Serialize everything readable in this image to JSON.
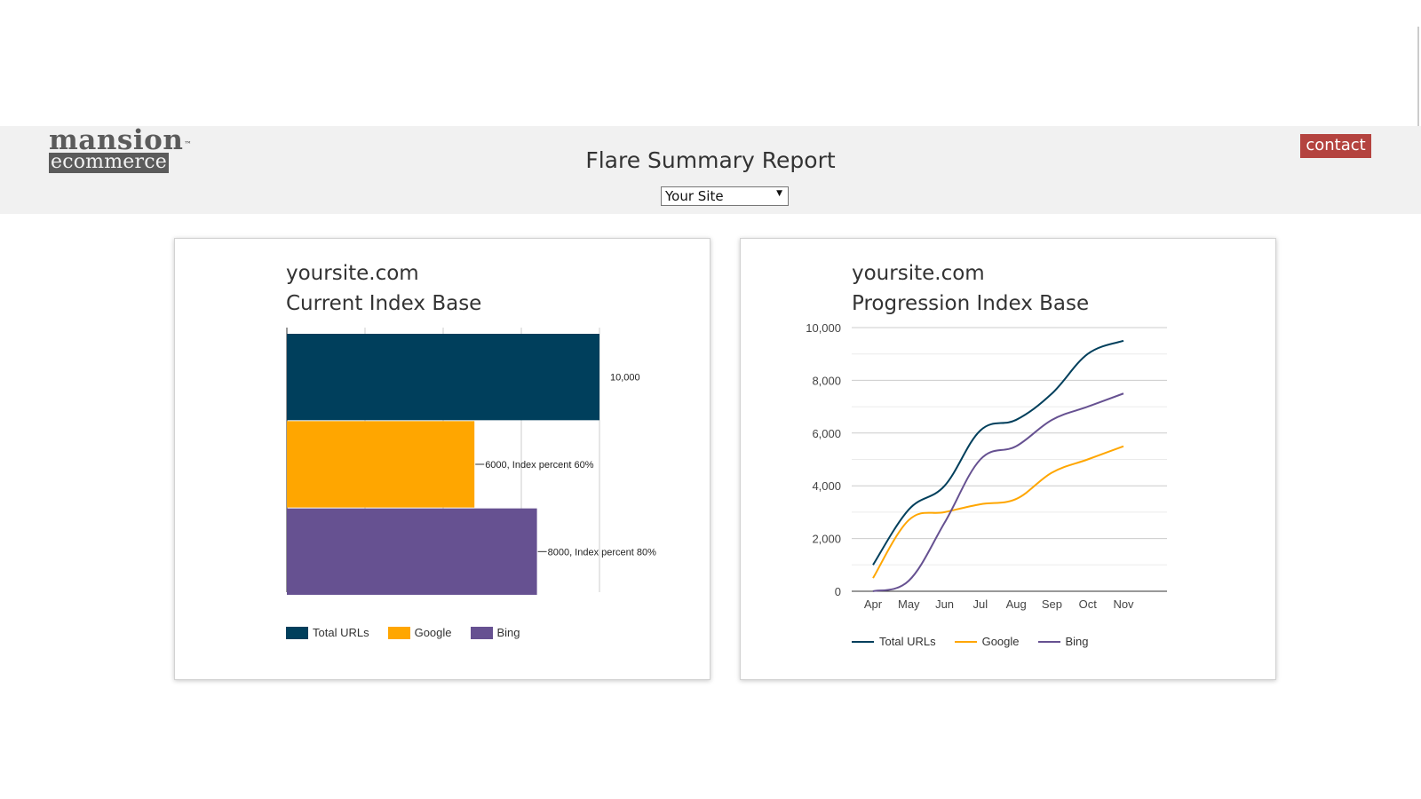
{
  "header": {
    "logo": {
      "top": "mansion",
      "mark": "™",
      "bottom": "ecommerce"
    },
    "title": "Flare Summary Report",
    "site_select": {
      "selected": "Your Site",
      "arrow": "▼"
    },
    "contact_label": "contact"
  },
  "colors": {
    "total_urls": "#003f5c",
    "google": "#ffa600",
    "bing": "#665191",
    "header_bg": "#f1f1f1",
    "contact_bg": "#b4433f"
  },
  "left_card": {
    "title_line1": "yoursite.com",
    "title_line2": "Current Index Base",
    "legend": [
      "Total URLs",
      "Google",
      "Bing"
    ]
  },
  "right_card": {
    "title_line1": "yoursite.com",
    "title_line2": "Progression Index Base",
    "legend": [
      "Total URLs",
      "Google",
      "Bing"
    ]
  },
  "chart_data": [
    {
      "type": "bar",
      "orientation": "horizontal",
      "title": "yoursite.com Current Index Base",
      "categories": [
        "Total URLs",
        "Google",
        "Bing"
      ],
      "values": [
        10000,
        6000,
        8000
      ],
      "data_labels": [
        "10,000",
        "6000, Index percent 60%",
        "8000, Index percent 80%"
      ],
      "xlim": [
        0,
        10000
      ],
      "grid": true,
      "legend_position": "bottom"
    },
    {
      "type": "line",
      "title": "yoursite.com Progression Index Base",
      "x": [
        "Apr",
        "May",
        "Jun",
        "Jul",
        "Aug",
        "Sep",
        "Oct",
        "Nov"
      ],
      "series": [
        {
          "name": "Total URLs",
          "values": [
            1000,
            3100,
            4000,
            6100,
            6500,
            7500,
            9000,
            9500
          ]
        },
        {
          "name": "Google",
          "values": [
            500,
            2700,
            3000,
            3300,
            3500,
            4500,
            5000,
            5500
          ]
        },
        {
          "name": "Bing",
          "values": [
            0,
            400,
            2600,
            5000,
            5500,
            6500,
            7000,
            7500
          ]
        }
      ],
      "yticks": [
        "0",
        "2,000",
        "4,000",
        "6,000",
        "8,000",
        "10,000"
      ],
      "ylim": [
        0,
        10000
      ],
      "grid": true,
      "legend_position": "bottom"
    }
  ]
}
